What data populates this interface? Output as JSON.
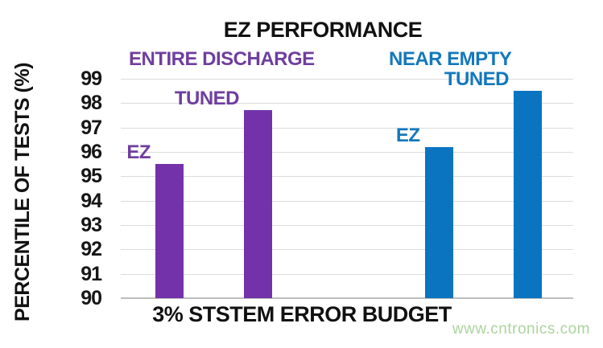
{
  "watermark": {
    "text": "www.cntronics.com",
    "color": "#abd49e"
  },
  "chart_data": {
    "type": "bar",
    "title": "EZ PERFORMANCE",
    "ylabel": "PERCENTILE OF TESTS (%)",
    "xlabel": "3% STSTEM ERROR BUDGET",
    "ylim": [
      90,
      99
    ],
    "yticks": [
      99,
      98,
      97,
      96,
      95,
      94,
      93,
      92,
      91,
      90
    ],
    "grid": "horizontal",
    "legend_position": "none",
    "groups": [
      {
        "name": "ENTIRE DISCHARGE",
        "color": "#7332aa",
        "text_color": "#6f3e9e",
        "bars": [
          {
            "label": "EZ",
            "value": 95.5
          },
          {
            "label": "TUNED",
            "value": 97.7
          }
        ]
      },
      {
        "name": "NEAR EMPTY",
        "color": "#0a74c0",
        "text_color": "#1478bc",
        "bars": [
          {
            "label": "EZ",
            "value": 96.2
          },
          {
            "label": "TUNED",
            "value": 98.5
          }
        ]
      }
    ]
  }
}
